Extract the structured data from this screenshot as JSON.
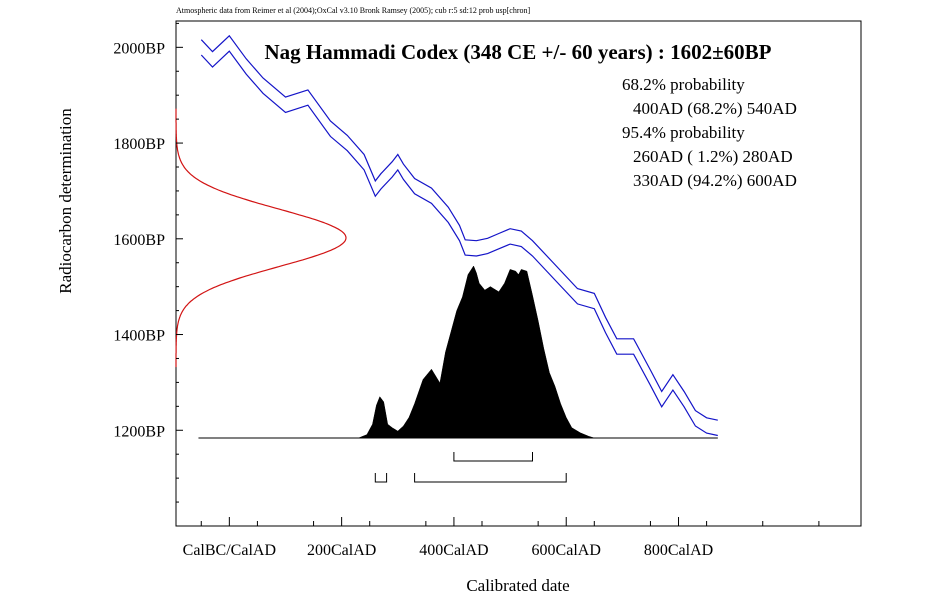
{
  "chart_data": {
    "type": "area",
    "credit": "Atmospheric data from Reimer et al (2004);OxCal v3.10 Bronk Ramsey (2005); cub r:5 sd:12 prob usp[chron]",
    "title": "Nag Hammadi Codex (348 CE +/- 60 years) : 1602±60BP",
    "xlabel": "Calibrated date",
    "ylabel": "Radiocarbon determination",
    "x_ticks": [
      "CalBC/CalAD",
      "200CalAD",
      "400CalAD",
      "600CalAD",
      "800CalAD"
    ],
    "x_tick_values": [
      0,
      200,
      400,
      600,
      800
    ],
    "y_ticks": [
      "2000BP",
      "1800BP",
      "1600BP",
      "1400BP",
      "1200BP"
    ],
    "y_tick_values": [
      2000,
      1800,
      1600,
      1400,
      1200
    ],
    "xlim": [
      -95,
      1125
    ],
    "ylim": [
      1000,
      2055
    ],
    "summary": [
      "68.2% probability",
      "400AD (68.2%) 540AD",
      "95.4% probability",
      "260AD ( 1.2%) 280AD",
      "330AD (94.2%) 600AD"
    ],
    "ranges_68": [
      [
        400,
        540
      ]
    ],
    "ranges_95": [
      [
        260,
        280
      ],
      [
        330,
        600
      ]
    ],
    "measurement": {
      "mean_bp": 1602,
      "sd": 60
    },
    "calibration_curve": {
      "x": [
        -50,
        -30,
        0,
        30,
        60,
        100,
        140,
        180,
        210,
        240,
        260,
        270,
        290,
        300,
        310,
        330,
        360,
        390,
        410,
        420,
        440,
        460,
        480,
        500,
        520,
        540,
        580,
        620,
        650,
        670,
        690,
        720,
        750,
        770,
        790,
        810,
        830,
        850,
        870
      ],
      "y": [
        2000,
        1975,
        2008,
        1960,
        1920,
        1880,
        1895,
        1830,
        1800,
        1760,
        1705,
        1720,
        1745,
        1760,
        1740,
        1710,
        1690,
        1650,
        1612,
        1582,
        1580,
        1585,
        1595,
        1605,
        1600,
        1580,
        1530,
        1480,
        1470,
        1420,
        1375,
        1375,
        1310,
        1265,
        1300,
        1265,
        1225,
        1210,
        1205
      ],
      "sd": 16
    },
    "probability": {
      "x": [
        230,
        245,
        255,
        262,
        268,
        275,
        282,
        290,
        300,
        310,
        320,
        330,
        345,
        360,
        375,
        385,
        395,
        405,
        415,
        425,
        435,
        440,
        445,
        455,
        465,
        470,
        480,
        490,
        500,
        510,
        515,
        520,
        530,
        540,
        550,
        560,
        570,
        580,
        590,
        600,
        610,
        625,
        640,
        650
      ],
      "y": [
        0.0,
        0.02,
        0.08,
        0.19,
        0.24,
        0.21,
        0.08,
        0.06,
        0.04,
        0.07,
        0.12,
        0.2,
        0.34,
        0.4,
        0.32,
        0.5,
        0.62,
        0.74,
        0.82,
        0.95,
        1.0,
        0.96,
        0.9,
        0.86,
        0.88,
        0.87,
        0.85,
        0.9,
        0.98,
        0.97,
        0.95,
        0.98,
        0.97,
        0.83,
        0.68,
        0.52,
        0.38,
        0.3,
        0.2,
        0.12,
        0.06,
        0.03,
        0.01,
        0.0
      ]
    },
    "colors": {
      "curve": "#1414c8",
      "measurement": "#d21414",
      "probability_fill": "#000000",
      "axes": "#000000"
    },
    "grid": false
  }
}
